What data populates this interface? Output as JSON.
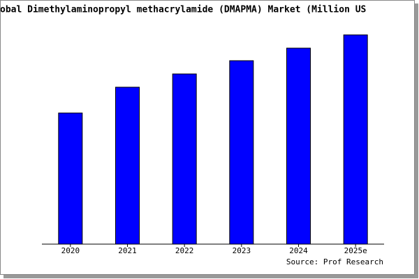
{
  "chart_data": {
    "type": "bar",
    "title": "obal Dimethylaminopropyl methacrylamide (DMAPMA) Market (Million US",
    "categories": [
      "2020",
      "2021",
      "2022",
      "2023",
      "2024",
      "2025e"
    ],
    "values": [
      188,
      225,
      244,
      263,
      281,
      300
    ],
    "color": "#0000ff",
    "ylim": [
      0,
      300
    ],
    "source": "Source: Prof Research"
  }
}
